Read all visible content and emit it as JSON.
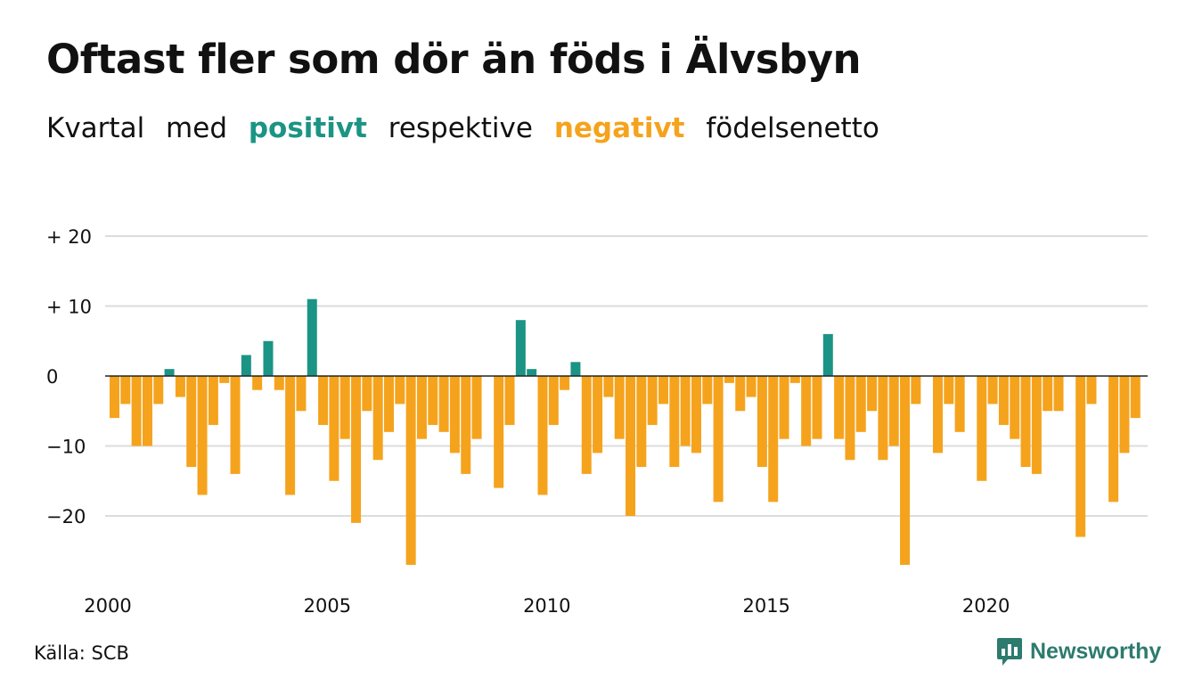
{
  "title": "Oftast fler som dör än föds i Älvsbyn",
  "subtitle": {
    "w1": "Kvartal",
    "w2": "med",
    "positive": "positivt",
    "w3": "respektive",
    "negative": "negativt",
    "w4": "födelsenetto"
  },
  "colors": {
    "positive": "#1b9485",
    "negative": "#f5a31d",
    "brand": "#2d7a6e",
    "grid": "#dcdcdc",
    "text": "#111111"
  },
  "source": "Källa: SCB",
  "brand": {
    "name": "Newsworthy",
    "icon": "newsworthy-logo-icon"
  },
  "chart_data": {
    "type": "bar",
    "title": "Oftast fler som dör än föds i Älvsbyn",
    "xlabel": "",
    "ylabel": "",
    "ylim": [
      -30,
      22
    ],
    "yticks": [
      20,
      10,
      0,
      -10,
      -20
    ],
    "ytick_labels": [
      "+ 20",
      "+ 10",
      "0",
      "−10",
      "−20"
    ],
    "xticks": [
      2000,
      2005,
      2010,
      2015,
      2020
    ],
    "xtick_labels": [
      "2000",
      "2005",
      "2010",
      "2015",
      "2020"
    ],
    "grid": true,
    "start_year": 2000,
    "periods_per_year": 4,
    "values": [
      -6,
      -4,
      -10,
      -10,
      -4,
      1,
      -3,
      -13,
      -17,
      -7,
      -1,
      -14,
      3,
      -2,
      5,
      -2,
      -17,
      -5,
      11,
      -7,
      -15,
      -9,
      -21,
      -5,
      -12,
      -8,
      -4,
      -27,
      -9,
      -7,
      -8,
      -11,
      -14,
      -9,
      0,
      -16,
      -7,
      8,
      1,
      -17,
      -7,
      -2,
      2,
      -14,
      -11,
      -3,
      -9,
      -20,
      -13,
      -7,
      -4,
      -13,
      -10,
      -11,
      -4,
      -18,
      -1,
      -5,
      -3,
      -13,
      -18,
      -9,
      -1,
      -10,
      -9,
      6,
      -9,
      -12,
      -8,
      -5,
      -12,
      -10,
      -27,
      -4,
      0,
      -11,
      -4,
      -8,
      0,
      -15,
      -4,
      -7,
      -9,
      -13,
      -14,
      -5,
      -5,
      0,
      -23,
      -4,
      0,
      -18,
      -11,
      -6
    ]
  }
}
